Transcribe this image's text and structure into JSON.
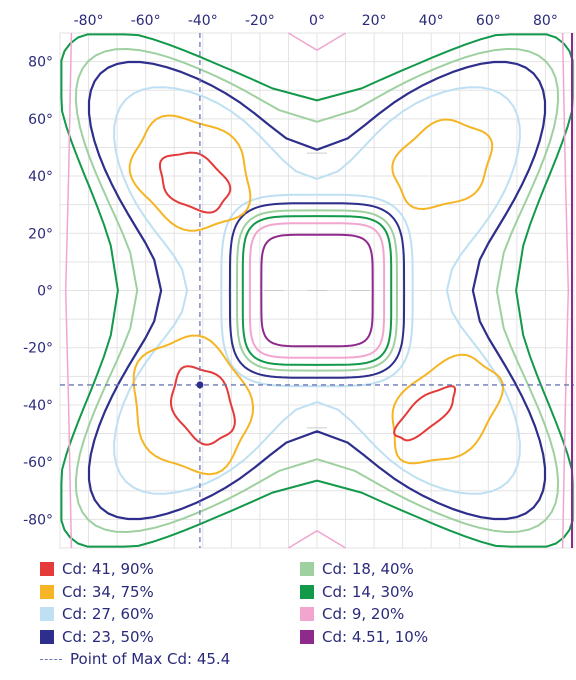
{
  "chart_data": {
    "type": "contour",
    "x_ticks": [
      "-80°",
      "-60°",
      "-40°",
      "-20°",
      "0°",
      "20°",
      "40°",
      "60°",
      "80°"
    ],
    "y_ticks": [
      "80°",
      "60°",
      "40°",
      "20°",
      "0°",
      "-20°",
      "-40°",
      "-60°",
      "-80°"
    ],
    "xlim": [
      -90,
      90
    ],
    "ylim": [
      -90,
      90
    ],
    "grid": true,
    "legend_position": "bottom",
    "levels": [
      {
        "label": "Cd: 41, 90%",
        "color": "#e43a3a"
      },
      {
        "label": "Cd: 34, 75%",
        "color": "#f5b524"
      },
      {
        "label": "Cd: 27, 60%",
        "color": "#bfe0f2"
      },
      {
        "label": "Cd: 23, 50%",
        "color": "#2e2e8c"
      },
      {
        "label": "Cd: 18, 40%",
        "color": "#9ed0a0"
      },
      {
        "label": "Cd: 14, 30%",
        "color": "#12994a"
      },
      {
        "label": "Cd: 9, 20%",
        "color": "#f2a6cf"
      },
      {
        "label": "Cd: 4.51, 10%",
        "color": "#8e2a8c"
      }
    ],
    "max_point": {
      "label": "Point of Max Cd: 45.4",
      "x": -41,
      "y": -33,
      "color": "#2e2e8c"
    }
  }
}
